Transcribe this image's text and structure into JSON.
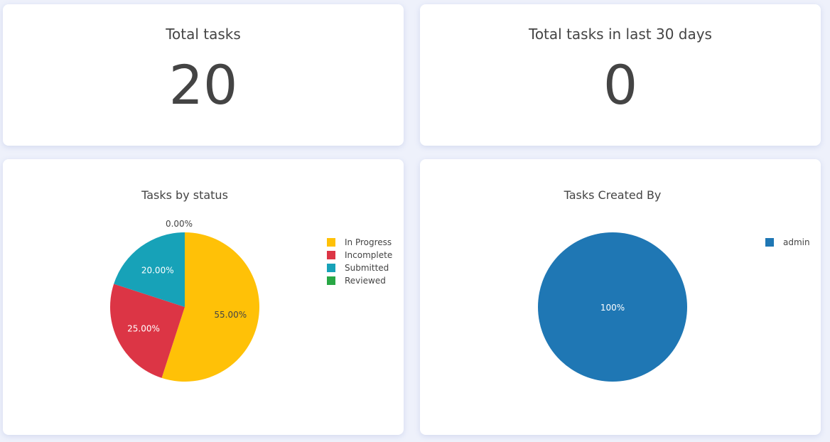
{
  "cards": {
    "total_tasks": {
      "title": "Total tasks",
      "value": "20"
    },
    "total_last_30": {
      "title": "Total tasks in last 30 days",
      "value": "0"
    }
  },
  "chart_data": [
    {
      "type": "pie",
      "title": "Tasks by status",
      "labels": [
        "In Progress",
        "Incomplete",
        "Submitted",
        "Reviewed"
      ],
      "values": [
        55,
        25,
        20,
        0
      ],
      "text": [
        "55.00%",
        "25.00%",
        "20.00%",
        "0.00%"
      ],
      "colors": [
        "#ffc107",
        "#dc3545",
        "#17a2b8",
        "#28a745"
      ],
      "text_colors": [
        "#444444",
        "#ffffff",
        "#ffffff",
        "#444444"
      ],
      "legend_position": "top-right"
    },
    {
      "type": "pie",
      "title": "Tasks Created By",
      "labels": [
        "admin"
      ],
      "values": [
        100
      ],
      "text": [
        "100%"
      ],
      "colors": [
        "#1f77b4"
      ],
      "text_colors": [
        "#ffffff"
      ],
      "legend_position": "top-right"
    }
  ]
}
